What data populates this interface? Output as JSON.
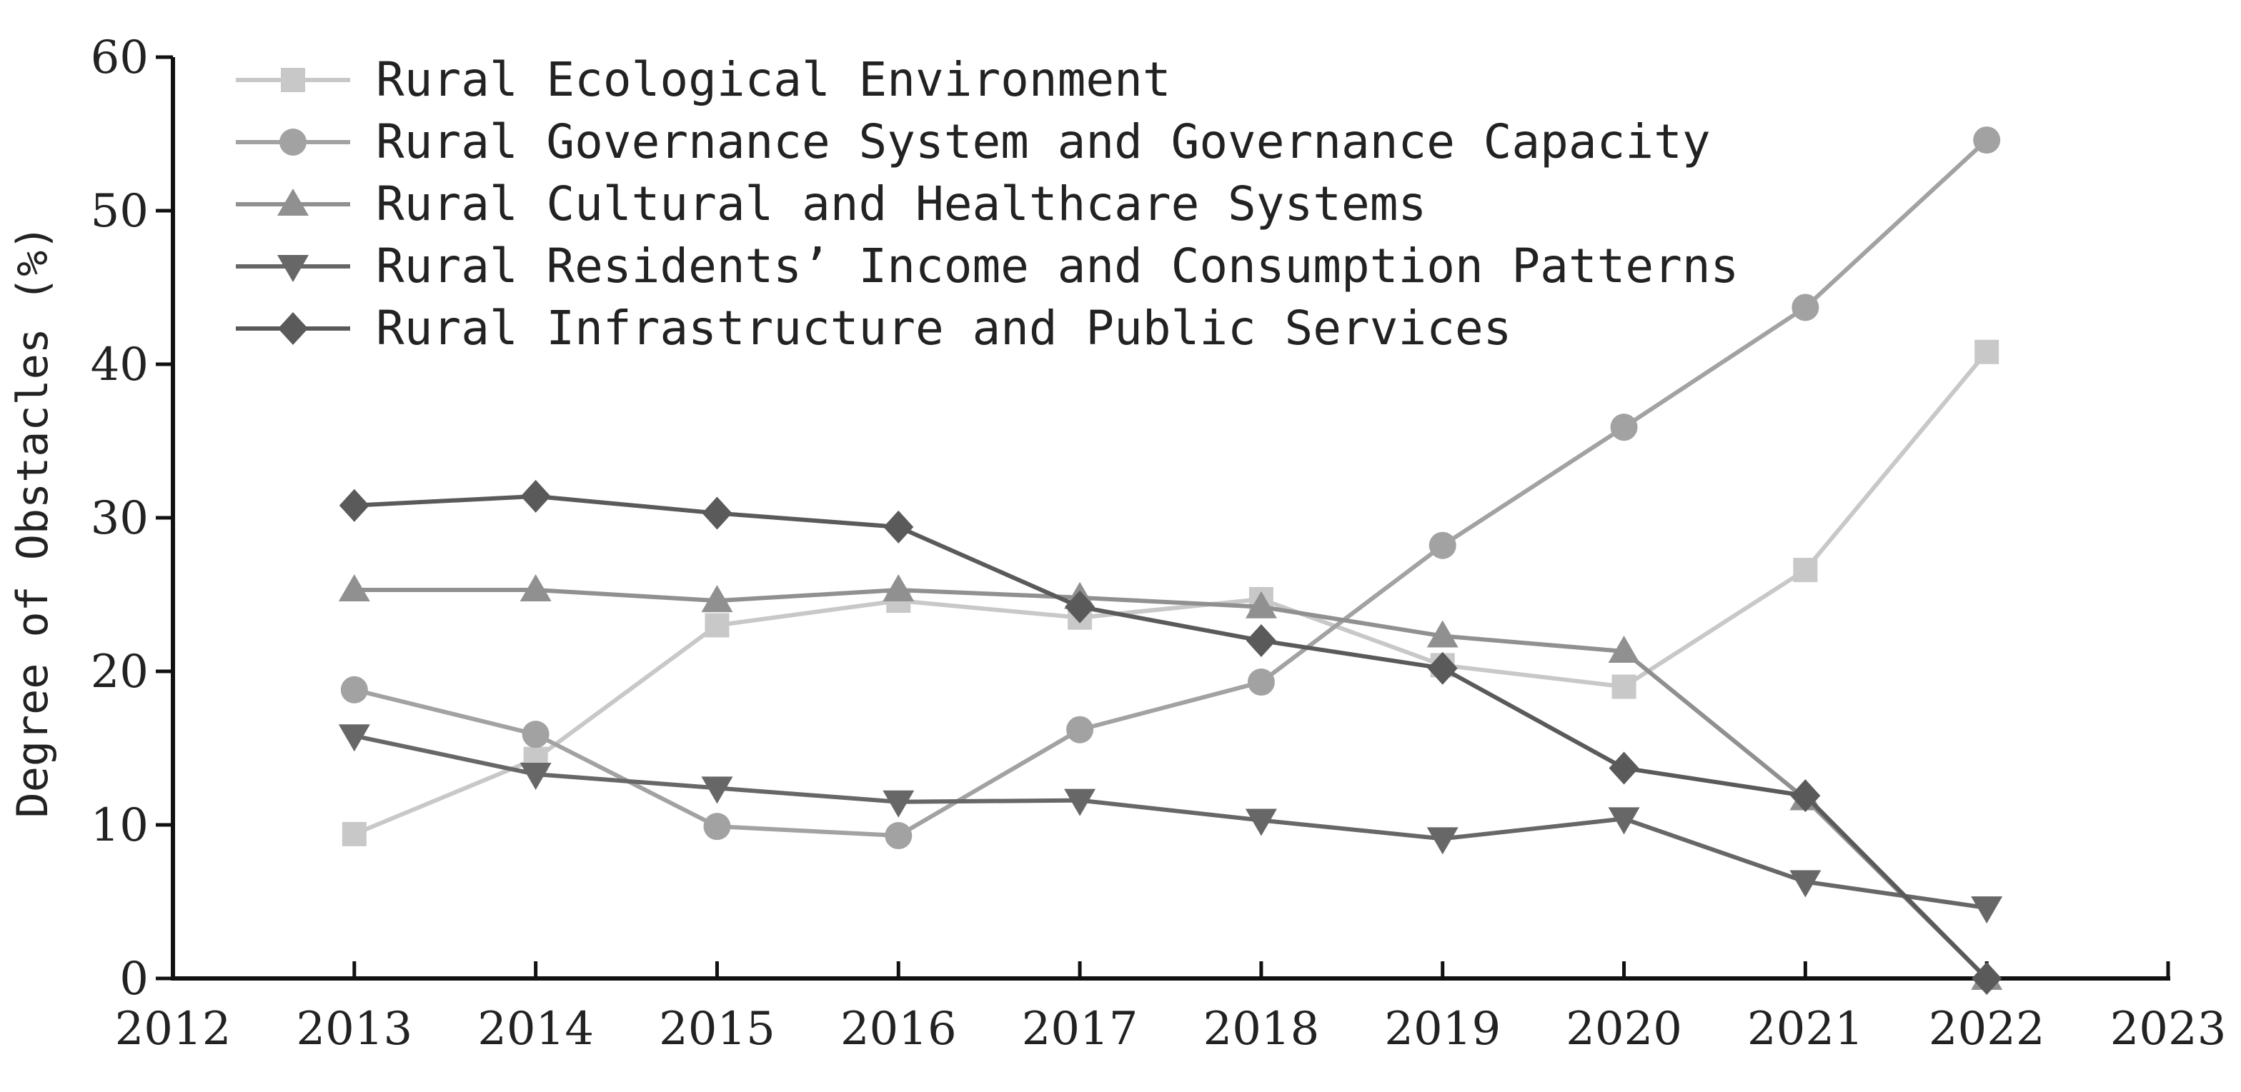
{
  "chart_data": {
    "type": "line",
    "title": "",
    "xlabel": "",
    "ylabel": "Degree of Obstacles (%)",
    "xlim": [
      2012,
      2023
    ],
    "ylim": [
      0,
      60
    ],
    "x_ticks": [
      "2012",
      "2013",
      "2014",
      "2015",
      "2016",
      "2017",
      "2018",
      "2019",
      "2020",
      "2021",
      "2022",
      "2023"
    ],
    "y_ticks": [
      "0",
      "10",
      "20",
      "30",
      "40",
      "50",
      "60"
    ],
    "grid": false,
    "legend_position": "top-left",
    "x": [
      2013,
      2014,
      2015,
      2016,
      2017,
      2018,
      2019,
      2020,
      2021,
      2022
    ],
    "series": [
      {
        "name": "Rural Ecological Environment",
        "marker": "square",
        "color": "#c8c8c8",
        "values": [
          9.4,
          14.3,
          23.0,
          24.6,
          23.5,
          24.7,
          20.4,
          19.0,
          26.6,
          40.8
        ]
      },
      {
        "name": " Rural Governance System and Governance Capacity",
        "marker": "circle",
        "color": "#a2a2a2",
        "values": [
          18.8,
          15.9,
          9.9,
          9.3,
          16.2,
          19.3,
          28.2,
          35.9,
          43.7,
          54.6
        ]
      },
      {
        "name": "Rural Cultural and Healthcare Systems",
        "marker": "triangle-up",
        "color": "#909090",
        "values": [
          25.3,
          25.3,
          24.6,
          25.3,
          24.8,
          24.2,
          22.3,
          21.3,
          11.7,
          0.0
        ]
      },
      {
        "name": "Rural Residents’ Income and Consumption Patterns",
        "marker": "triangle-down",
        "color": "#676767",
        "values": [
          15.8,
          13.3,
          12.4,
          11.5,
          11.6,
          10.3,
          9.1,
          10.4,
          6.3,
          4.6
        ]
      },
      {
        "name": "Rural Infrastructure and Public Services",
        "marker": "diamond",
        "color": "#5a5a5a",
        "values": [
          30.8,
          31.4,
          30.3,
          29.4,
          24.2,
          22.0,
          20.2,
          13.7,
          11.9,
          0.0
        ]
      }
    ]
  }
}
